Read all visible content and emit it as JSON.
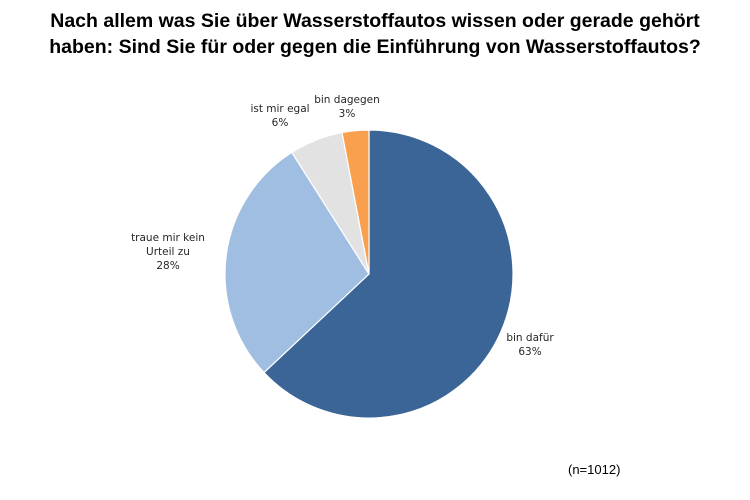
{
  "chart_data": {
    "type": "pie",
    "title_lines": [
      "Nach allem was Sie über Wasserstoffautos wissen oder gerade gehört",
      "haben: Sind Sie für oder gegen die Einführung von Wasserstoffautos?"
    ],
    "slices": [
      {
        "label_lines": [
          "bin dafür"
        ],
        "value": 63,
        "value_label": "63%",
        "color": "#3A6596"
      },
      {
        "label_lines": [
          "traue mir kein",
          "Urteil zu"
        ],
        "value": 28,
        "value_label": "28%",
        "color": "#A0BEE2"
      },
      {
        "label_lines": [
          "ist mir egal"
        ],
        "value": 6,
        "value_label": "6%",
        "color": "#E2E2E2"
      },
      {
        "label_lines": [
          "bin dagegen"
        ],
        "value": 3,
        "value_label": "3%",
        "color": "#F9A04F"
      }
    ],
    "legend": "none",
    "footnote": "(n=1012)"
  }
}
